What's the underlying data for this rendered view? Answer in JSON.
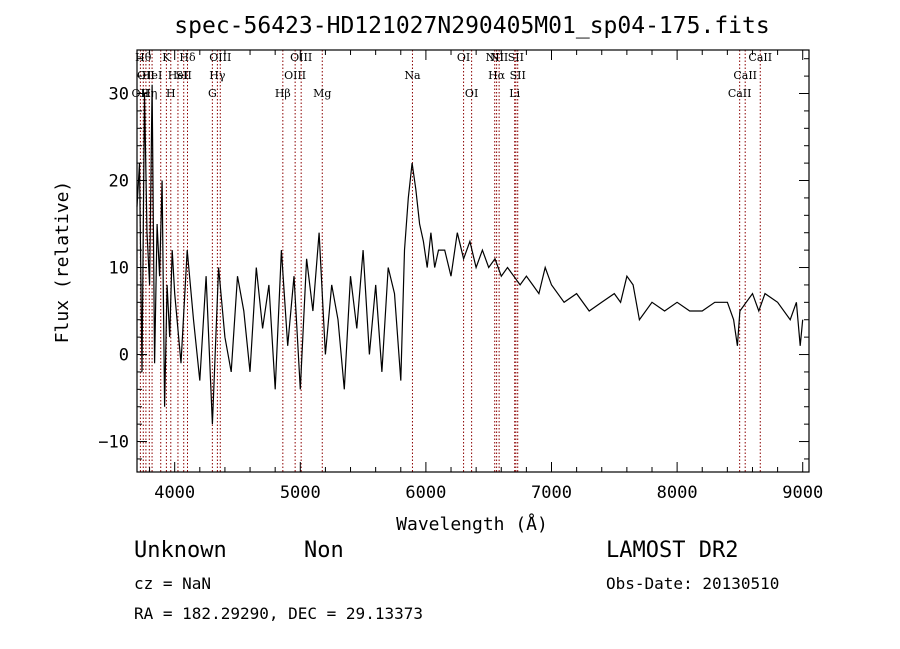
{
  "chart_data": {
    "type": "line",
    "title": "spec-56423-HD121027N290405M01_sp04-175.fits",
    "xlabel": "Wavelength (Å)",
    "ylabel": "Flux (relative)",
    "xlim": [
      3700,
      9050
    ],
    "ylim": [
      -13.5,
      35
    ],
    "xticks": [
      4000,
      5000,
      6000,
      7000,
      8000,
      9000
    ],
    "yticks": [
      -10,
      0,
      10,
      20,
      30
    ],
    "grid": false,
    "line_color": "#000000",
    "marker_color": "#8b0000",
    "series": [
      {
        "x": [
          3700,
          3720,
          3740,
          3760,
          3780,
          3800,
          3820,
          3840,
          3860,
          3880,
          3900,
          3920,
          3940,
          3960,
          3980,
          4000,
          4050,
          4100,
          4150,
          4200,
          4250,
          4300,
          4350,
          4400,
          4450,
          4500,
          4550,
          4600,
          4650,
          4700,
          4750,
          4800,
          4850,
          4900,
          4950,
          5000,
          5050,
          5100,
          5150,
          5200,
          5250,
          5300,
          5350,
          5400,
          5450,
          5500,
          5550,
          5600,
          5650,
          5700,
          5750,
          5800,
          5830,
          5860,
          5890,
          5920,
          5950,
          5980,
          6010,
          6040,
          6070,
          6100,
          6150,
          6200,
          6250,
          6300,
          6350,
          6400,
          6450,
          6500,
          6550,
          6600,
          6650,
          6700,
          6750,
          6800,
          6850,
          6900,
          6950,
          7000,
          7100,
          7200,
          7300,
          7400,
          7500,
          7550,
          7600,
          7650,
          7700,
          7800,
          7900,
          8000,
          8100,
          8200,
          8300,
          8400,
          8450,
          8480,
          8500,
          8550,
          8600,
          8650,
          8700,
          8800,
          8900,
          8950,
          8980,
          9000
        ],
        "y": [
          17,
          22,
          -2,
          30,
          14,
          8,
          31,
          -1,
          15,
          9,
          20,
          -6,
          8,
          2,
          12,
          7,
          -1,
          12,
          4,
          -3,
          9,
          -8,
          10,
          2,
          -2,
          9,
          5,
          -2,
          10,
          3,
          8,
          -4,
          12,
          1,
          9,
          -4,
          11,
          5,
          14,
          0,
          8,
          4,
          -4,
          9,
          3,
          12,
          0,
          8,
          -2,
          10,
          7,
          -3,
          12,
          18,
          22,
          19,
          15,
          13,
          10,
          14,
          10,
          12,
          12,
          9,
          14,
          11,
          13,
          10,
          12,
          10,
          11,
          9,
          10,
          9,
          8,
          9,
          8,
          7,
          10,
          8,
          6,
          7,
          5,
          6,
          7,
          6,
          9,
          8,
          4,
          6,
          5,
          6,
          5,
          5,
          6,
          6,
          4,
          1,
          5,
          6,
          7,
          5,
          7,
          6,
          4,
          6,
          1,
          4
        ]
      }
    ],
    "lines": [
      {
        "x": 3727,
        "label": "OII",
        "row": 3
      },
      {
        "x": 3750,
        "label": "Hθ",
        "row": 1
      },
      {
        "x": 3771,
        "label": "OII",
        "row": 2
      },
      {
        "x": 3798,
        "label": "Hη",
        "row": 3
      },
      {
        "x": 3820,
        "label": "HeI",
        "row": 2
      },
      {
        "x": 3889,
        "label": "",
        "row": 0
      },
      {
        "x": 3934,
        "label": "K",
        "row": 1
      },
      {
        "x": 3969,
        "label": "H",
        "row": 3
      },
      {
        "x": 4026,
        "label": "HeI",
        "row": 2
      },
      {
        "x": 4072,
        "label": "SII",
        "row": 2
      },
      {
        "x": 4102,
        "label": "Hδ",
        "row": 1
      },
      {
        "x": 4300,
        "label": "G",
        "row": 3
      },
      {
        "x": 4340,
        "label": "Hγ",
        "row": 2
      },
      {
        "x": 4363,
        "label": "OIII",
        "row": 1
      },
      {
        "x": 4861,
        "label": "Hβ",
        "row": 3
      },
      {
        "x": 4959,
        "label": "OIII",
        "row": 2
      },
      {
        "x": 5007,
        "label": "OIII",
        "row": 1
      },
      {
        "x": 5175,
        "label": "Mg",
        "row": 3
      },
      {
        "x": 5893,
        "label": "Na",
        "row": 2
      },
      {
        "x": 6300,
        "label": "OI",
        "row": 1
      },
      {
        "x": 6364,
        "label": "OI",
        "row": 3
      },
      {
        "x": 6548,
        "label": "NII",
        "row": 1
      },
      {
        "x": 6563,
        "label": "Hα",
        "row": 2
      },
      {
        "x": 6583,
        "label": "NII",
        "row": 1
      },
      {
        "x": 6707,
        "label": "Li",
        "row": 3
      },
      {
        "x": 6716,
        "label": "SII",
        "row": 1
      },
      {
        "x": 6731,
        "label": "SII",
        "row": 2
      },
      {
        "x": 8498,
        "label": "CaII",
        "row": 3
      },
      {
        "x": 8542,
        "label": "CaII",
        "row": 2
      },
      {
        "x": 8662,
        "label": "CaII",
        "row": 1
      }
    ]
  },
  "info": {
    "class_label": "Unknown",
    "subclass_label": "Non",
    "survey": "LAMOST DR2",
    "cz": "cz = NaN",
    "obs_date": "Obs-Date: 20130510",
    "coords": "RA = 182.29290, DEC =  29.13373"
  }
}
